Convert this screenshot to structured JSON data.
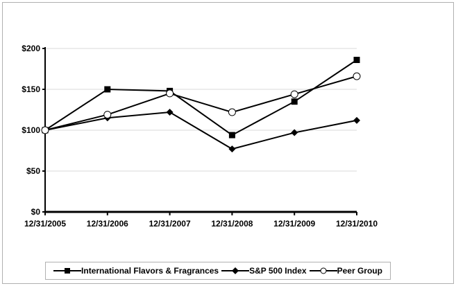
{
  "chart_data": {
    "type": "line",
    "categories": [
      "12/31/2005",
      "12/31/2006",
      "12/31/2007",
      "12/31/2008",
      "12/31/2009",
      "12/31/2010"
    ],
    "series": [
      {
        "name": "International Flavors & Fragrances",
        "marker": "square-filled",
        "values": [
          100,
          150,
          148,
          94,
          135,
          186
        ]
      },
      {
        "name": "S&P 500 Index",
        "marker": "diamond-filled",
        "values": [
          100,
          115,
          122,
          77,
          97,
          112
        ]
      },
      {
        "name": "Peer Group",
        "marker": "circle-open",
        "values": [
          100,
          119,
          145,
          122,
          144,
          166
        ]
      }
    ],
    "yticks": [
      "$0",
      "$50",
      "$100",
      "$150",
      "$200"
    ],
    "ylim": [
      0,
      200
    ],
    "grid": true,
    "legend": "bottom",
    "line_color": "#000000",
    "grid_color": "#d9d9d9"
  }
}
